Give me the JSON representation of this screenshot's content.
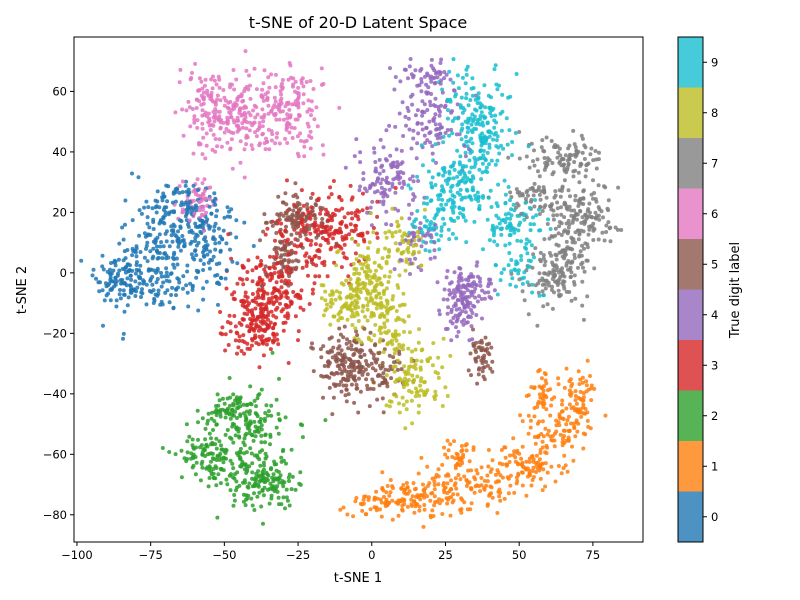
{
  "chart_data": {
    "type": "scatter",
    "title": "t-SNE of 20-D Latent Space",
    "xlabel": "t-SNE 1",
    "ylabel": "t-SNE 2",
    "xlim": [
      -101,
      92
    ],
    "ylim": [
      -89,
      78
    ],
    "xticks": [
      -100,
      -75,
      -50,
      -25,
      0,
      25,
      50,
      75
    ],
    "yticks": [
      -80,
      -60,
      -40,
      -20,
      0,
      20,
      40,
      60
    ],
    "grid": false,
    "colorbar": {
      "label": "True digit label",
      "ticks": [
        "0",
        "1",
        "2",
        "3",
        "4",
        "5",
        "6",
        "7",
        "8",
        "9"
      ],
      "colors": [
        "#1f77b4",
        "#ff7f0e",
        "#2ca02c",
        "#d62728",
        "#9467bd",
        "#8c564b",
        "#e377c2",
        "#7f7f7f",
        "#bcbd22",
        "#17becf"
      ]
    },
    "clusters": [
      {
        "label": 0,
        "center": [
          -70,
          5
        ],
        "approx_points": 500,
        "region": [
          [
            -92,
            -35
          ],
          [
            -50,
            30
          ]
        ]
      },
      {
        "label": 1,
        "center": [
          25,
          -65
        ],
        "approx_points": 550,
        "region": [
          [
            -5,
            80
          ],
          [
            -82,
            -30
          ]
        ]
      },
      {
        "label": 2,
        "center": [
          -45,
          -58
        ],
        "approx_points": 450,
        "region": [
          [
            -68,
            -18
          ],
          [
            -77,
            -39
          ]
        ]
      },
      {
        "label": 3,
        "center": [
          -28,
          -5
        ],
        "approx_points": 550,
        "region": [
          [
            -50,
            10
          ],
          [
            -37,
            33
          ]
        ]
      },
      {
        "label": 4,
        "center": [
          20,
          35
        ],
        "approx_points": 450,
        "region": [
          [
            0,
            45
          ],
          [
            -18,
            68
          ]
        ]
      },
      {
        "label": 5,
        "center": [
          -5,
          -20
        ],
        "approx_points": 450,
        "region": [
          [
            -35,
            45
          ],
          [
            -40,
            30
          ]
        ]
      },
      {
        "label": 6,
        "center": [
          -40,
          52
        ],
        "approx_points": 450,
        "region": [
          [
            -68,
            -15
          ],
          [
            18,
            70
          ]
        ]
      },
      {
        "label": 7,
        "center": [
          65,
          15
        ],
        "approx_points": 450,
        "region": [
          [
            45,
            83
          ],
          [
            -12,
            47
          ]
        ]
      },
      {
        "label": 8,
        "center": [
          5,
          -10
        ],
        "approx_points": 450,
        "region": [
          [
            -15,
            25
          ],
          [
            -45,
            30
          ]
        ]
      },
      {
        "label": 9,
        "center": [
          35,
          35
        ],
        "approx_points": 500,
        "region": [
          [
            15,
            58
          ],
          [
            0,
            70
          ]
        ]
      }
    ]
  }
}
